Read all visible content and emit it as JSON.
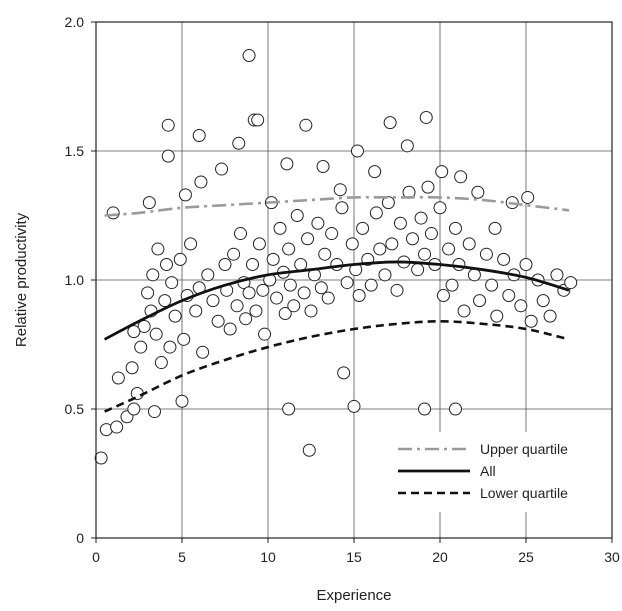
{
  "chart_data": {
    "type": "scatter",
    "title": "",
    "xlabel": "Experience",
    "ylabel": "Relative productivity",
    "xlim": [
      0,
      30
    ],
    "ylim": [
      0,
      2.0
    ],
    "x_ticks": [
      0,
      5,
      10,
      15,
      20,
      25,
      30
    ],
    "y_ticks": [
      0,
      0.5,
      1.0,
      1.5,
      2.0
    ],
    "x_tick_labels": [
      "0",
      "5",
      "10",
      "15",
      "20",
      "25",
      "30"
    ],
    "y_tick_labels": [
      "0",
      "0.5",
      "1.0",
      "1.5",
      "2.0"
    ],
    "grid": true,
    "legend_position": "bottom-right",
    "lines": [
      {
        "name": "Upper quartile",
        "style": "dash-dot",
        "color": "#9a9a9a",
        "x": [
          0.5,
          2.5,
          5,
          7.5,
          10,
          12.5,
          15,
          17.5,
          20,
          22.5,
          25,
          27.5
        ],
        "y": [
          1.25,
          1.26,
          1.28,
          1.29,
          1.3,
          1.31,
          1.32,
          1.32,
          1.32,
          1.31,
          1.29,
          1.27
        ]
      },
      {
        "name": "All",
        "style": "solid",
        "color": "#111111",
        "x": [
          0.5,
          2.5,
          5,
          7.5,
          10,
          12.5,
          15,
          17.5,
          20,
          22.5,
          25,
          27.5
        ],
        "y": [
          0.77,
          0.84,
          0.92,
          0.98,
          1.02,
          1.04,
          1.06,
          1.07,
          1.06,
          1.04,
          1.01,
          0.96
        ]
      },
      {
        "name": "Lower quartile",
        "style": "dashed",
        "color": "#111111",
        "x": [
          0.5,
          2.5,
          5,
          7.5,
          10,
          12.5,
          15,
          17.5,
          20,
          22.5,
          25,
          27.5
        ],
        "y": [
          0.49,
          0.55,
          0.63,
          0.69,
          0.74,
          0.78,
          0.81,
          0.83,
          0.84,
          0.83,
          0.81,
          0.77
        ]
      }
    ],
    "scatter": {
      "marker": "open-circle",
      "x": [
        0.3,
        0.6,
        1.2,
        1.3,
        1.8,
        2.1,
        2.4,
        2.6,
        2.8,
        3.0,
        3.2,
        3.3,
        3.5,
        3.6,
        3.8,
        4.0,
        4.1,
        4.3,
        4.4,
        4.6,
        4.9,
        5.1,
        5.3,
        5.5,
        5.8,
        6.0,
        6.2,
        6.5,
        6.8,
        7.1,
        7.5,
        7.6,
        7.8,
        8.0,
        8.2,
        8.4,
        8.6,
        8.7,
        8.9,
        9.1,
        9.3,
        9.5,
        9.7,
        9.8,
        10.1,
        10.3,
        10.5,
        10.7,
        10.9,
        11.0,
        11.2,
        11.3,
        11.5,
        11.7,
        11.9,
        12.1,
        12.3,
        12.5,
        12.7,
        12.9,
        13.1,
        13.3,
        13.5,
        13.7,
        14.0,
        14.3,
        14.6,
        14.9,
        15.1,
        15.3,
        15.5,
        15.8,
        16.0,
        16.3,
        16.5,
        16.8,
        17.0,
        17.2,
        17.5,
        17.7,
        17.9,
        18.2,
        18.4,
        18.7,
        18.9,
        19.1,
        19.3,
        19.5,
        19.7,
        20.0,
        20.2,
        20.5,
        20.7,
        20.9,
        21.1,
        21.4,
        21.7,
        22.0,
        22.3,
        22.7,
        23.0,
        23.3,
        23.7,
        24.0,
        24.3,
        24.7,
        25.0,
        25.3,
        25.7,
        26.0,
        26.4,
        26.8,
        27.2,
        27.6,
        2.2,
        3.1,
        4.2,
        5.2,
        6.1,
        7.3,
        8.3,
        9.2,
        10.2,
        11.1,
        12.2,
        13.2,
        14.2,
        15.2,
        16.2,
        17.1,
        18.1,
        19.2,
        20.1,
        21.2,
        22.2,
        23.2,
        24.2,
        25.1,
        8.9,
        4.2,
        6.0,
        9.4,
        12.4,
        15.0,
        19.1,
        11.2,
        20.9,
        14.4,
        1.0,
        2.2,
        3.4,
        5.0
      ],
      "y": [
        0.31,
        0.42,
        0.43,
        0.62,
        0.47,
        0.66,
        0.56,
        0.74,
        0.82,
        0.95,
        0.88,
        1.02,
        0.79,
        1.12,
        0.68,
        0.92,
        1.06,
        0.74,
        0.99,
        0.86,
        1.08,
        0.77,
        0.94,
        1.14,
        0.88,
        0.97,
        0.72,
        1.02,
        0.92,
        0.84,
        1.06,
        0.96,
        0.81,
        1.1,
        0.9,
        1.18,
        0.99,
        0.85,
        0.95,
        1.06,
        0.88,
        1.14,
        0.96,
        0.79,
        1.0,
        1.08,
        0.93,
        1.2,
        1.03,
        0.87,
        1.12,
        0.98,
        0.9,
        1.25,
        1.06,
        0.95,
        1.16,
        0.88,
        1.02,
        1.22,
        0.97,
        1.1,
        0.93,
        1.18,
        1.06,
        1.28,
        0.99,
        1.14,
        1.04,
        0.94,
        1.2,
        1.08,
        0.98,
        1.26,
        1.12,
        1.02,
        1.3,
        1.14,
        0.96,
        1.22,
        1.07,
        1.34,
        1.16,
        1.04,
        1.24,
        1.1,
        1.36,
        1.18,
        1.06,
        1.28,
        0.94,
        1.12,
        0.98,
        1.2,
        1.06,
        0.88,
        1.14,
        1.02,
        0.92,
        1.1,
        0.98,
        0.86,
        1.08,
        0.94,
        1.02,
        0.9,
        1.06,
        0.84,
        1.0,
        0.92,
        0.86,
        1.02,
        0.96,
        0.99,
        0.8,
        1.3,
        1.48,
        1.33,
        1.38,
        1.43,
        1.53,
        1.62,
        1.3,
        1.45,
        1.6,
        1.44,
        1.35,
        1.5,
        1.42,
        1.61,
        1.52,
        1.63,
        1.42,
        1.4,
        1.34,
        1.2,
        1.3,
        1.32,
        1.87,
        1.6,
        1.56,
        1.62,
        0.34,
        0.51,
        0.5,
        0.5,
        0.5,
        0.64,
        1.26,
        0.5,
        0.49,
        0.53
      ]
    }
  }
}
